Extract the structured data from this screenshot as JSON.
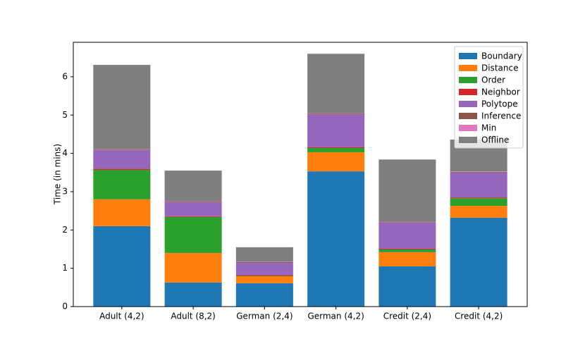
{
  "chart_data": {
    "type": "stacked_bar",
    "y_label": "Time (in mins)",
    "categories": [
      "Adult (4,2)",
      "Adult (8,2)",
      "German (2,4)",
      "German (4,2)",
      "Credit (2,4)",
      "Credit (4,2)"
    ],
    "series": [
      {
        "name": "Boundary",
        "color": "#1f77b4",
        "values": [
          2.1,
          0.63,
          0.61,
          3.53,
          1.05,
          2.32
        ]
      },
      {
        "name": "Distance",
        "color": "#ff7f0e",
        "values": [
          0.7,
          0.77,
          0.18,
          0.5,
          0.37,
          0.31
        ]
      },
      {
        "name": "Order",
        "color": "#2ca02c",
        "values": [
          0.77,
          0.94,
          0.01,
          0.11,
          0.07,
          0.2
        ]
      },
      {
        "name": "Neighbor",
        "color": "#d62728",
        "values": [
          0.03,
          0.02,
          0.02,
          0.02,
          0.02,
          0.02
        ]
      },
      {
        "name": "Polytope",
        "color": "#9467bd",
        "values": [
          0.48,
          0.36,
          0.32,
          0.86,
          0.68,
          0.65
        ]
      },
      {
        "name": "Inference",
        "color": "#8c564b",
        "values": [
          0.02,
          0.02,
          0.02,
          0.02,
          0.01,
          0.02
        ]
      },
      {
        "name": "Min",
        "color": "#e377c2",
        "values": [
          0.01,
          0.01,
          0.01,
          0.01,
          0.01,
          0.01
        ]
      },
      {
        "name": "Offline",
        "color": "#7f7f7f",
        "values": [
          2.2,
          0.8,
          0.38,
          1.55,
          1.63,
          0.83
        ]
      }
    ],
    "ylim": [
      0,
      6.9
    ],
    "yticks": [
      0,
      1,
      2,
      3,
      4,
      5,
      6
    ],
    "legend": "upper right",
    "grid": false
  }
}
